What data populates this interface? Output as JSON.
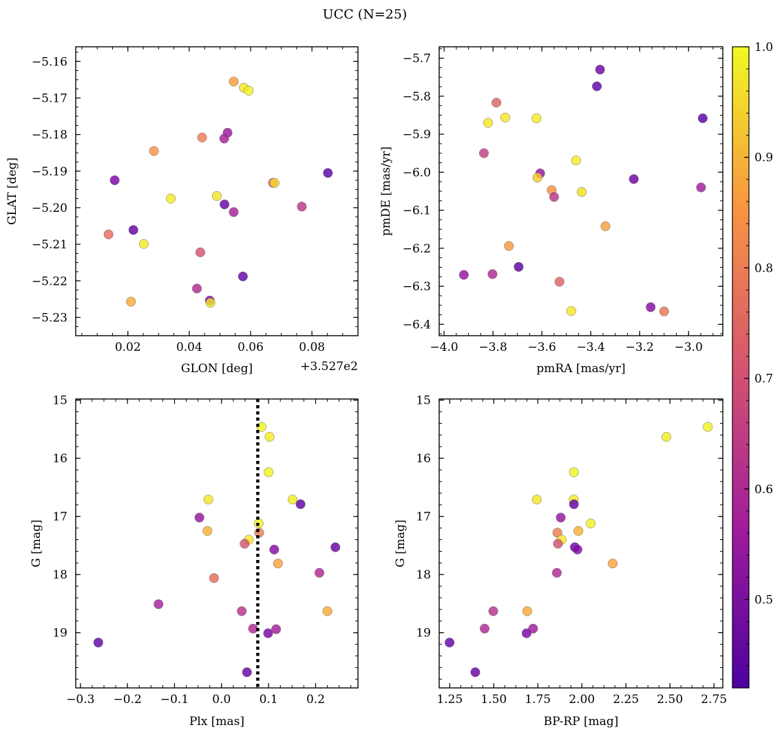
{
  "figure": {
    "title": "UCC (N=25)",
    "colorbar": {
      "colormap": "plasma",
      "range": [
        0.42,
        1.0
      ],
      "ticks": [
        "0.5",
        "0.6",
        "0.7",
        "0.8",
        "0.9",
        "1.0"
      ]
    }
  },
  "chart_data": [
    {
      "type": "scatter",
      "name": "glon-glat",
      "xlabel": "GLON [deg]",
      "ylabel": "GLAT [deg]",
      "x_offset_label": "+3.527e2",
      "xlim": [
        0.003,
        0.095
      ],
      "ylim": [
        -5.235,
        -5.156
      ],
      "xticks": [
        0.02,
        0.04,
        0.06,
        0.08
      ],
      "xtick_labels": [
        "0.02",
        "0.04",
        "0.06",
        "0.08"
      ],
      "yticks": [
        -5.16,
        -5.17,
        -5.18,
        -5.19,
        -5.2,
        -5.21,
        -5.22,
        -5.23
      ],
      "ytick_labels": [
        "−5.16",
        "−5.17",
        "−5.18",
        "−5.19",
        "−5.20",
        "−5.21",
        "−5.22",
        "−5.23"
      ],
      "points": [
        {
          "x": 0.0545,
          "y": -5.1655,
          "c": 0.85
        },
        {
          "x": 0.0578,
          "y": -5.1672,
          "c": 0.97
        },
        {
          "x": 0.0594,
          "y": -5.168,
          "c": 0.99
        },
        {
          "x": 0.0525,
          "y": -5.1795,
          "c": 0.56
        },
        {
          "x": 0.0442,
          "y": -5.1808,
          "c": 0.79
        },
        {
          "x": 0.0514,
          "y": -5.1811,
          "c": 0.58
        },
        {
          "x": 0.0285,
          "y": -5.1845,
          "c": 0.83
        },
        {
          "x": 0.0852,
          "y": -5.1905,
          "c": 0.45
        },
        {
          "x": 0.0157,
          "y": -5.1925,
          "c": 0.5
        },
        {
          "x": 0.0673,
          "y": -5.1932,
          "c": 0.7
        },
        {
          "x": 0.0678,
          "y": -5.1932,
          "c": 0.95
        },
        {
          "x": 0.049,
          "y": -5.1968,
          "c": 0.97
        },
        {
          "x": 0.034,
          "y": -5.1975,
          "c": 0.98
        },
        {
          "x": 0.0515,
          "y": -5.1991,
          "c": 0.47
        },
        {
          "x": 0.0767,
          "y": -5.1997,
          "c": 0.63
        },
        {
          "x": 0.0545,
          "y": -5.2012,
          "c": 0.58
        },
        {
          "x": 0.0218,
          "y": -5.2061,
          "c": 0.46
        },
        {
          "x": 0.0137,
          "y": -5.2073,
          "c": 0.75
        },
        {
          "x": 0.0252,
          "y": -5.2099,
          "c": 0.98
        },
        {
          "x": 0.0436,
          "y": -5.2122,
          "c": 0.7
        },
        {
          "x": 0.0575,
          "y": -5.2188,
          "c": 0.47
        },
        {
          "x": 0.0425,
          "y": -5.2221,
          "c": 0.6
        },
        {
          "x": 0.0467,
          "y": -5.2254,
          "c": 0.5
        },
        {
          "x": 0.0469,
          "y": -5.226,
          "c": 0.97
        },
        {
          "x": 0.021,
          "y": -5.2257,
          "c": 0.87
        }
      ]
    },
    {
      "type": "scatter",
      "name": "pmra-pmde",
      "xlabel": "pmRA [mas/yr]",
      "ylabel": "pmDE [mas/yr]",
      "xlim": [
        -4.02,
        -2.86
      ],
      "ylim": [
        -6.43,
        -5.67
      ],
      "xticks": [
        -4.0,
        -3.8,
        -3.6,
        -3.4,
        -3.2,
        -3.0
      ],
      "xtick_labels": [
        "−4.0",
        "−3.8",
        "−3.6",
        "−3.4",
        "−3.2",
        "−3.0"
      ],
      "yticks": [
        -5.7,
        -5.8,
        -5.9,
        -6.0,
        -6.1,
        -6.2,
        -6.3,
        -6.4
      ],
      "ytick_labels": [
        "−5.7",
        "−5.8",
        "−5.9",
        "−6.0",
        "−6.1",
        "−6.2",
        "−6.3",
        "−6.4"
      ],
      "points": [
        {
          "x": -3.362,
          "y": -5.73,
          "c": 0.48
        },
        {
          "x": -3.375,
          "y": -5.774,
          "c": 0.45
        },
        {
          "x": -3.786,
          "y": -5.817,
          "c": 0.73
        },
        {
          "x": -2.942,
          "y": -5.858,
          "c": 0.45
        },
        {
          "x": -3.75,
          "y": -5.856,
          "c": 0.97
        },
        {
          "x": -3.622,
          "y": -5.858,
          "c": 0.98
        },
        {
          "x": -3.82,
          "y": -5.87,
          "c": 0.97
        },
        {
          "x": -3.837,
          "y": -5.95,
          "c": 0.65
        },
        {
          "x": -3.46,
          "y": -5.969,
          "c": 0.98
        },
        {
          "x": -3.607,
          "y": -6.003,
          "c": 0.55
        },
        {
          "x": -3.618,
          "y": -6.014,
          "c": 0.93
        },
        {
          "x": -3.224,
          "y": -6.018,
          "c": 0.48
        },
        {
          "x": -2.949,
          "y": -6.04,
          "c": 0.57
        },
        {
          "x": -3.56,
          "y": -6.047,
          "c": 0.83
        },
        {
          "x": -3.437,
          "y": -6.052,
          "c": 0.96
        },
        {
          "x": -3.55,
          "y": -6.065,
          "c": 0.63
        },
        {
          "x": -3.34,
          "y": -6.142,
          "c": 0.85
        },
        {
          "x": -3.735,
          "y": -6.194,
          "c": 0.84
        },
        {
          "x": -3.695,
          "y": -6.249,
          "c": 0.45
        },
        {
          "x": -3.919,
          "y": -6.27,
          "c": 0.55
        },
        {
          "x": -3.802,
          "y": -6.268,
          "c": 0.6
        },
        {
          "x": -3.528,
          "y": -6.288,
          "c": 0.73
        },
        {
          "x": -3.155,
          "y": -6.355,
          "c": 0.52
        },
        {
          "x": -3.48,
          "y": -6.365,
          "c": 0.97
        },
        {
          "x": -3.1,
          "y": -6.366,
          "c": 0.77
        }
      ]
    },
    {
      "type": "scatter",
      "name": "plx-g",
      "xlabel": "Plx [mas]",
      "ylabel": "G [mag]",
      "xlim": [
        -0.31,
        0.29
      ],
      "ylim": [
        19.95,
        14.98
      ],
      "y_inverted": true,
      "vline": {
        "x": 0.077,
        "style": "dotted",
        "color": "#000000"
      },
      "xticks": [
        -0.3,
        -0.2,
        -0.1,
        0.0,
        0.1,
        0.2
      ],
      "xtick_labels": [
        "−0.3",
        "−0.2",
        "−0.1",
        "0.0",
        "0.1",
        "0.2"
      ],
      "yticks": [
        15,
        16,
        17,
        18,
        19
      ],
      "ytick_labels": [
        "15",
        "16",
        "17",
        "18",
        "19"
      ],
      "points": [
        {
          "x": 0.085,
          "y": 15.46,
          "c": 0.99
        },
        {
          "x": 0.102,
          "y": 15.63,
          "c": 0.98
        },
        {
          "x": 0.1,
          "y": 16.24,
          "c": 0.99
        },
        {
          "x": -0.028,
          "y": 16.71,
          "c": 0.97
        },
        {
          "x": 0.151,
          "y": 16.71,
          "c": 0.98
        },
        {
          "x": 0.168,
          "y": 16.79,
          "c": 0.46
        },
        {
          "x": -0.047,
          "y": 17.02,
          "c": 0.55
        },
        {
          "x": 0.079,
          "y": 17.12,
          "c": 0.99
        },
        {
          "x": -0.03,
          "y": 17.25,
          "c": 0.88
        },
        {
          "x": 0.08,
          "y": 17.28,
          "c": 0.79
        },
        {
          "x": 0.058,
          "y": 17.4,
          "c": 0.97
        },
        {
          "x": 0.049,
          "y": 17.47,
          "c": 0.7
        },
        {
          "x": 0.242,
          "y": 17.53,
          "c": 0.47
        },
        {
          "x": 0.112,
          "y": 17.57,
          "c": 0.52
        },
        {
          "x": 0.12,
          "y": 17.81,
          "c": 0.86
        },
        {
          "x": 0.208,
          "y": 17.97,
          "c": 0.6
        },
        {
          "x": -0.016,
          "y": 18.06,
          "c": 0.75
        },
        {
          "x": -0.134,
          "y": 18.51,
          "c": 0.58
        },
        {
          "x": 0.043,
          "y": 18.63,
          "c": 0.62
        },
        {
          "x": 0.225,
          "y": 18.63,
          "c": 0.87
        },
        {
          "x": 0.067,
          "y": 18.93,
          "c": 0.6
        },
        {
          "x": 0.116,
          "y": 18.94,
          "c": 0.57
        },
        {
          "x": 0.099,
          "y": 19.01,
          "c": 0.5
        },
        {
          "x": -0.262,
          "y": 19.17,
          "c": 0.46
        },
        {
          "x": 0.054,
          "y": 19.68,
          "c": 0.47
        }
      ]
    },
    {
      "type": "scatter",
      "name": "bprp-g",
      "xlabel": "BP-RP [mag]",
      "ylabel": "G [mag]",
      "xlim": [
        1.19,
        2.8
      ],
      "ylim": [
        19.95,
        14.98
      ],
      "y_inverted": true,
      "xticks": [
        1.25,
        1.5,
        1.75,
        2.0,
        2.25,
        2.5,
        2.75
      ],
      "xtick_labels": [
        "1.25",
        "1.50",
        "1.75",
        "2.00",
        "2.25",
        "2.50",
        "2.75"
      ],
      "yticks": [
        15,
        16,
        17,
        18,
        19
      ],
      "ytick_labels": [
        "15",
        "16",
        "17",
        "18",
        "19"
      ],
      "points": [
        {
          "x": 2.715,
          "y": 15.46,
          "c": 0.99
        },
        {
          "x": 2.48,
          "y": 15.63,
          "c": 0.98
        },
        {
          "x": 1.955,
          "y": 16.24,
          "c": 0.99
        },
        {
          "x": 1.744,
          "y": 16.71,
          "c": 0.97
        },
        {
          "x": 1.954,
          "y": 16.71,
          "c": 0.98
        },
        {
          "x": 1.955,
          "y": 16.79,
          "c": 0.46
        },
        {
          "x": 1.88,
          "y": 17.02,
          "c": 0.55
        },
        {
          "x": 2.05,
          "y": 17.12,
          "c": 0.99
        },
        {
          "x": 1.98,
          "y": 17.25,
          "c": 0.88
        },
        {
          "x": 1.861,
          "y": 17.28,
          "c": 0.79
        },
        {
          "x": 1.885,
          "y": 17.4,
          "c": 0.97
        },
        {
          "x": 1.864,
          "y": 17.47,
          "c": 0.7
        },
        {
          "x": 1.96,
          "y": 17.53,
          "c": 0.47
        },
        {
          "x": 1.975,
          "y": 17.57,
          "c": 0.52
        },
        {
          "x": 2.175,
          "y": 17.81,
          "c": 0.86
        },
        {
          "x": 1.858,
          "y": 17.97,
          "c": 0.6
        },
        {
          "x": 1.497,
          "y": 18.63,
          "c": 0.62
        },
        {
          "x": 1.69,
          "y": 18.63,
          "c": 0.87
        },
        {
          "x": 1.448,
          "y": 18.93,
          "c": 0.6
        },
        {
          "x": 1.723,
          "y": 18.93,
          "c": 0.57
        },
        {
          "x": 1.686,
          "y": 19.01,
          "c": 0.5
        },
        {
          "x": 1.249,
          "y": 19.17,
          "c": 0.46
        },
        {
          "x": 1.395,
          "y": 19.68,
          "c": 0.47
        }
      ]
    }
  ]
}
